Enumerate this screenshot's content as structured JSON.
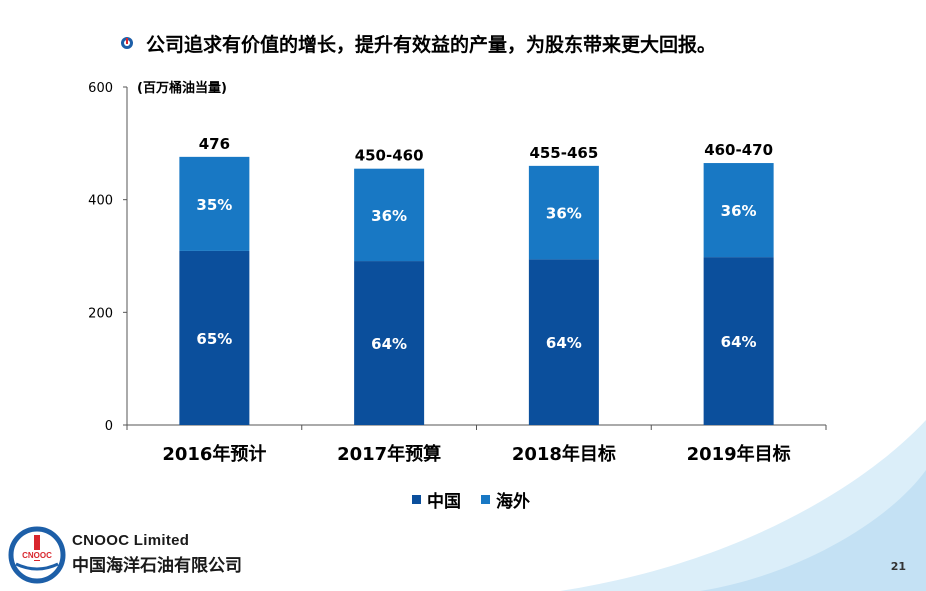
{
  "headline": "公司追求有价值的增长，提升有效益的产量，为股东带来更大回报。",
  "colors": {
    "china": "#0b4f9c",
    "overseas": "#1878c4",
    "swoosh": "#cfe6f6"
  },
  "chart_data": {
    "type": "bar",
    "stacked": true,
    "unit_label": "(百万桶油当量)",
    "categories": [
      "2016年预计",
      "2017年预算",
      "2018年目标",
      "2019年目标"
    ],
    "totals": [
      476,
      455,
      460,
      465
    ],
    "total_labels": [
      "476",
      "450-460",
      "455-465",
      "460-470"
    ],
    "series": [
      {
        "name": "中国",
        "percent_labels": [
          "65%",
          "64%",
          "64%",
          "64%"
        ],
        "values": [
          309,
          291,
          294,
          298
        ]
      },
      {
        "name": "海外",
        "percent_labels": [
          "35%",
          "36%",
          "36%",
          "36%"
        ],
        "values": [
          167,
          164,
          166,
          167
        ]
      }
    ],
    "ylim": [
      0,
      600
    ],
    "yticks": [
      0,
      200,
      400,
      600
    ],
    "legend": "bottom"
  },
  "footer": {
    "company_en": "CNOOC Limited",
    "company_cn": "中国海洋石油有限公司",
    "logo_text": "CNOOC"
  },
  "page_number": "21"
}
